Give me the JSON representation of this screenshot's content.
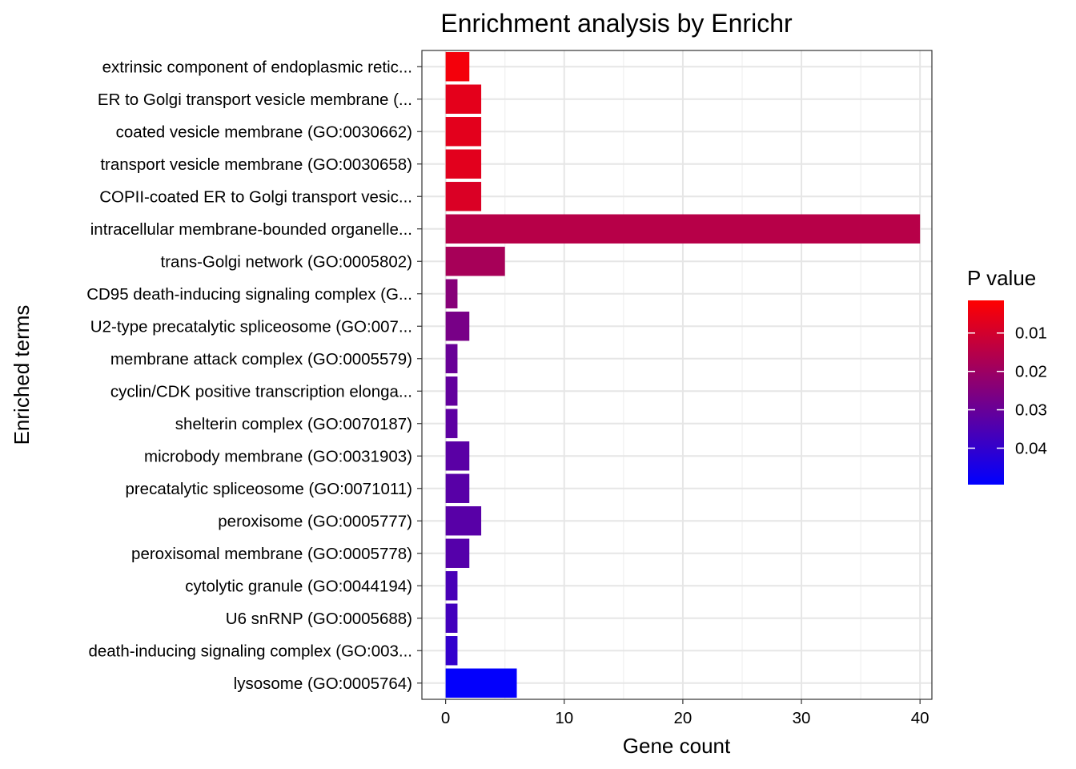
{
  "chart_data": {
    "type": "bar",
    "orientation": "horizontal",
    "title": "Enrichment analysis by Enrichr",
    "xlabel": "Gene count",
    "ylabel": "Enriched terms",
    "xlim": [
      -2,
      41
    ],
    "xticks": [
      0,
      10,
      20,
      30,
      40
    ],
    "grid": true,
    "categories": [
      "extrinsic component of endoplasmic retic...",
      "ER to Golgi transport vesicle membrane (...",
      "coated vesicle membrane (GO:0030662)",
      "transport vesicle membrane (GO:0030658)",
      "COPII-coated ER to Golgi transport vesic...",
      "intracellular membrane-bounded organelle...",
      "trans-Golgi network (GO:0005802)",
      "CD95 death-inducing signaling complex (G...",
      "U2-type precatalytic spliceosome (GO:007...",
      "membrane attack complex (GO:0005579)",
      "cyclin/CDK positive transcription elonga...",
      "shelterin complex (GO:0070187)",
      "microbody membrane (GO:0031903)",
      "precatalytic spliceosome (GO:0071011)",
      "peroxisome (GO:0005777)",
      "peroxisomal membrane (GO:0005778)",
      "cytolytic granule (GO:0044194)",
      "U6 snRNP (GO:0005688)",
      "death-inducing signaling complex (GO:003...",
      "lysosome (GO:0005764)"
    ],
    "values": [
      2,
      3,
      3,
      3,
      3,
      40,
      5,
      1,
      2,
      1,
      1,
      1,
      2,
      2,
      3,
      2,
      1,
      1,
      1,
      6
    ],
    "p_values": [
      0.0035,
      0.0065,
      0.0068,
      0.007,
      0.0085,
      0.015,
      0.018,
      0.024,
      0.027,
      0.03,
      0.031,
      0.032,
      0.0325,
      0.033,
      0.033,
      0.0335,
      0.036,
      0.037,
      0.04,
      0.049
    ],
    "legend": {
      "title": "P value",
      "placement": "right",
      "ticks": [
        "0.01",
        "0.02",
        "0.03",
        "0.04"
      ],
      "tick_values": [
        0.01,
        0.02,
        0.03,
        0.04
      ],
      "range": [
        0.0015,
        0.0495
      ],
      "low_color": "#FF0000",
      "high_color": "#0000FF"
    }
  }
}
